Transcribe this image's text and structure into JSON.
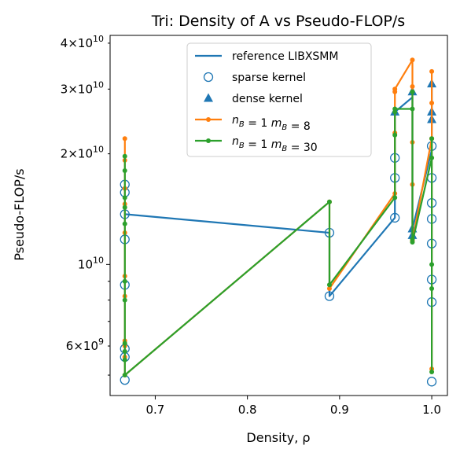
{
  "chart_data": {
    "type": "line",
    "title": "Tri: Density of A vs Pseudo-FLOP/s",
    "xlabel": "Density, ρ",
    "ylabel": "Pseudo-FLOP/s",
    "xlim": [
      0.651,
      1.017
    ],
    "ylim": [
      4400000000.0,
      42000000000.0
    ],
    "yscale": "log",
    "xticks": [
      {
        "value": 0.7,
        "label": "0.7"
      },
      {
        "value": 0.8,
        "label": "0.8"
      },
      {
        "value": 0.9,
        "label": "0.9"
      },
      {
        "value": 1.0,
        "label": "1.0"
      }
    ],
    "yticks_major": [
      {
        "value": 10000000000.0,
        "base": "10",
        "exp": "10"
      }
    ],
    "yticks_minor_labeled": [
      {
        "value": 6000000000.0,
        "mant": "6",
        "base": "10",
        "exp": "9"
      },
      {
        "value": 20000000000.0,
        "mant": "2",
        "base": "10",
        "exp": "10"
      },
      {
        "value": 30000000000.0,
        "mant": "3",
        "base": "10",
        "exp": "10"
      },
      {
        "value": 40000000000.0,
        "mant": "4",
        "base": "10",
        "exp": "10"
      }
    ],
    "yticks_minor": [
      5000000000.0,
      7000000000.0,
      8000000000.0,
      9000000000.0
    ],
    "legend": {
      "placement": "top-center",
      "entries": [
        {
          "label": "reference LIBXSMM",
          "kind": "line",
          "color": "#1f77b4"
        },
        {
          "label": "sparse kernel",
          "kind": "open-circle",
          "color": "#1f77b4"
        },
        {
          "label": "dense kernel",
          "kind": "triangle",
          "color": "#1f77b4"
        },
        {
          "label_parts": [
            [
              "n",
              "B"
            ],
            " = 1 ",
            [
              "m",
              "B"
            ],
            " = 8"
          ],
          "kind": "line-dot",
          "color": "#ff7f0e"
        },
        {
          "label_parts": [
            [
              "n",
              "B"
            ],
            " = 1 ",
            [
              "m",
              "B"
            ],
            " = 30"
          ],
          "kind": "line-dot",
          "color": "#2ca02c"
        }
      ]
    },
    "series": [
      {
        "kind": "line",
        "color": "#1f77b4",
        "x": [
          0.667,
          0.889,
          0.889,
          0.96,
          0.96,
          0.979,
          0.979,
          1.0,
          1.0
        ],
        "y": [
          13700000000.0,
          12200000000.0,
          8200000000.0,
          13400000000.0,
          26000000000.0,
          28500000000.0,
          12500000000.0,
          20500000000.0,
          31000000000.0
        ]
      },
      {
        "kind": "open-circle",
        "color": "#1f77b4",
        "x": [
          0.667,
          0.667,
          0.667,
          0.667,
          0.667,
          0.667,
          0.667,
          0.667,
          0.889,
          0.889,
          0.96,
          0.96,
          0.96,
          1.0,
          1.0,
          1.0,
          1.0,
          1.0,
          1.0,
          1.0,
          1.0
        ],
        "y": [
          16500000000.0,
          15700000000.0,
          13700000000.0,
          11700000000.0,
          8800000000.0,
          5900000000.0,
          5600000000.0,
          4850000000.0,
          12200000000.0,
          8200000000.0,
          19500000000.0,
          17200000000.0,
          13400000000.0,
          21000000000.0,
          17200000000.0,
          14700000000.0,
          13300000000.0,
          11400000000.0,
          9100000000.0,
          7900000000.0,
          4800000000.0
        ]
      },
      {
        "kind": "triangle",
        "color": "#1f77b4",
        "x": [
          0.96,
          0.979,
          0.979,
          0.979,
          1.0,
          1.0,
          1.0
        ],
        "y": [
          26000000000.0,
          29500000000.0,
          12500000000.0,
          12000000000.0,
          31000000000.0,
          26000000000.0,
          24800000000.0
        ]
      },
      {
        "kind": "line-dot",
        "color": "#ff7f0e",
        "x": [
          0.667,
          0.667,
          0.667,
          0.667,
          0.667,
          0.667,
          0.667,
          0.667,
          0.667,
          0.667,
          0.667,
          0.889,
          0.889,
          0.96,
          0.96,
          0.96,
          0.96,
          0.979,
          0.979,
          0.979,
          0.979,
          0.979,
          1.0,
          1.0,
          1.0,
          1.0,
          1.0
        ],
        "y": [
          22000000000.0,
          19200000000.0,
          16100000000.0,
          14600000000.0,
          12200000000.0,
          9300000000.0,
          8200000000.0,
          6200000000.0,
          6000000000.0,
          5600000000.0,
          5000000000.0,
          14800000000.0,
          8600000000.0,
          15600000000.0,
          22800000000.0,
          29500000000.0,
          30000000000.0,
          36000000000.0,
          30500000000.0,
          21500000000.0,
          16500000000.0,
          11600000000.0,
          22000000000.0,
          27500000000.0,
          33500000000.0,
          22000000000.0,
          5200000000.0
        ]
      },
      {
        "kind": "line-dot",
        "color": "#2ca02c",
        "x": [
          0.667,
          0.667,
          0.667,
          0.667,
          0.667,
          0.667,
          0.667,
          0.667,
          0.667,
          0.667,
          0.667,
          0.889,
          0.889,
          0.96,
          0.96,
          0.96,
          0.96,
          0.979,
          0.979,
          0.979,
          0.979,
          1.0,
          1.0,
          1.0,
          1.0,
          1.0
        ],
        "y": [
          19700000000.0,
          18000000000.0,
          15200000000.0,
          14300000000.0,
          12900000000.0,
          9000000000.0,
          8000000000.0,
          6100000000.0,
          5800000000.0,
          5500000000.0,
          5000000000.0,
          14800000000.0,
          8800000000.0,
          15200000000.0,
          22500000000.0,
          26000000000.0,
          26500000000.0,
          26500000000.0,
          29500000000.0,
          11700000000.0,
          11500000000.0,
          19500000000.0,
          22000000000.0,
          10000000000.0,
          8600000000.0,
          5100000000.0
        ]
      }
    ]
  }
}
